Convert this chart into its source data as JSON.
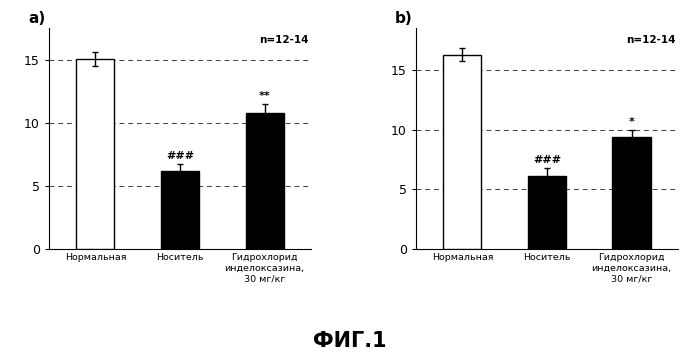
{
  "panel_a": {
    "bars": [
      {
        "label": "Нормальная",
        "value": 15.1,
        "error": 0.55,
        "color": "white",
        "edgecolor": "black"
      },
      {
        "label": "Носитель",
        "value": 6.2,
        "error": 0.5,
        "color": "black",
        "edgecolor": "black"
      },
      {
        "label": "Гидрохлорид\nинделоксазина,\n30 мг/кг",
        "value": 10.8,
        "error": 0.65,
        "color": "black",
        "edgecolor": "black"
      }
    ],
    "annotations": [
      {
        "bar_idx": 1,
        "text": "###",
        "fontsize": 8
      },
      {
        "bar_idx": 2,
        "text": "**",
        "fontsize": 8
      }
    ],
    "n_label": "n=12-14",
    "ylim": [
      0,
      17.5
    ],
    "yticks": [
      0,
      5,
      10,
      15
    ],
    "hlines": [
      5,
      10,
      15
    ],
    "panel_label": "a)"
  },
  "panel_b": {
    "bars": [
      {
        "label": "Нормальная",
        "value": 16.3,
        "error": 0.55,
        "color": "white",
        "edgecolor": "black"
      },
      {
        "label": "Носитель",
        "value": 6.1,
        "error": 0.65,
        "color": "black",
        "edgecolor": "black"
      },
      {
        "label": "Гидрохлорид\nинделоксазина,\n30 мг/кг",
        "value": 9.4,
        "error": 0.55,
        "color": "black",
        "edgecolor": "black"
      }
    ],
    "annotations": [
      {
        "bar_idx": 1,
        "text": "###",
        "fontsize": 8
      },
      {
        "bar_idx": 2,
        "text": "*",
        "fontsize": 8
      }
    ],
    "n_label": "n=12-14",
    "ylim": [
      0,
      18.5
    ],
    "yticks": [
      0,
      5,
      10,
      15
    ],
    "hlines": [
      5,
      10,
      15
    ],
    "panel_label": "b)"
  },
  "fig_label": "ФИГ.1",
  "background_color": "#ffffff",
  "bar_width": 0.45
}
